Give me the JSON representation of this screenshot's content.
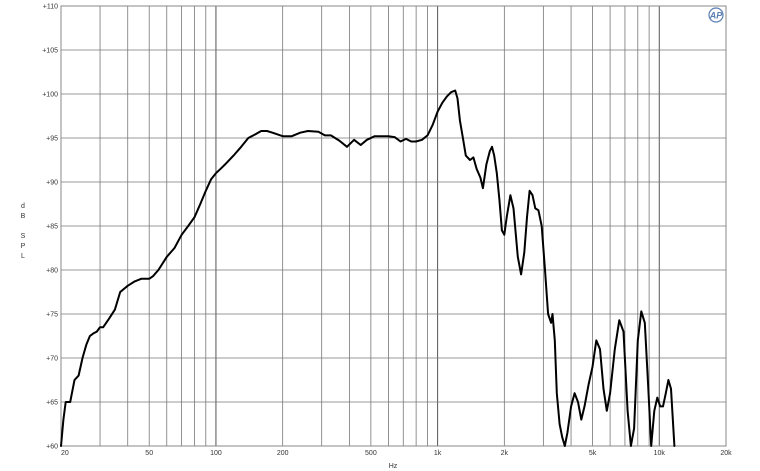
{
  "chart_data": {
    "type": "line",
    "xscale": "log",
    "xlim": [
      20,
      20000
    ],
    "ylim": [
      60,
      110
    ],
    "xlabel": "Hz",
    "ylabel": [
      "d",
      "B",
      "",
      "S",
      "P",
      "L"
    ],
    "x_ticks": [
      {
        "v": 20,
        "label": "20"
      },
      {
        "v": 50,
        "label": "50"
      },
      {
        "v": 100,
        "label": "100"
      },
      {
        "v": 200,
        "label": "200"
      },
      {
        "v": 500,
        "label": "500"
      },
      {
        "v": 1000,
        "label": "1k"
      },
      {
        "v": 2000,
        "label": "2k"
      },
      {
        "v": 5000,
        "label": "5k"
      },
      {
        "v": 10000,
        "label": "10k"
      },
      {
        "v": 20000,
        "label": "20k"
      }
    ],
    "y_ticks": [
      {
        "v": 60,
        "label": "+60"
      },
      {
        "v": 65,
        "label": "+65"
      },
      {
        "v": 70,
        "label": "+70"
      },
      {
        "v": 75,
        "label": "+75"
      },
      {
        "v": 80,
        "label": "+80"
      },
      {
        "v": 85,
        "label": "+85"
      },
      {
        "v": 90,
        "label": "+90"
      },
      {
        "v": 95,
        "label": "+95"
      },
      {
        "v": 100,
        "label": "+100"
      },
      {
        "v": 105,
        "label": "+105"
      },
      {
        "v": 110,
        "label": "+110"
      }
    ],
    "grid": true,
    "logo_text": "AP",
    "series": [
      {
        "color": "#000000",
        "points": [
          [
            20,
            60
          ],
          [
            20.5,
            63
          ],
          [
            21,
            65
          ],
          [
            22,
            65
          ],
          [
            23,
            67.5
          ],
          [
            24,
            68
          ],
          [
            25,
            70
          ],
          [
            26,
            71.5
          ],
          [
            27,
            72.5
          ],
          [
            28,
            72.8
          ],
          [
            29,
            73
          ],
          [
            30,
            73.5
          ],
          [
            31,
            73.5
          ],
          [
            33,
            74.5
          ],
          [
            35,
            75.5
          ],
          [
            37,
            77.5
          ],
          [
            40,
            78.2
          ],
          [
            43,
            78.7
          ],
          [
            46,
            79
          ],
          [
            50,
            79
          ],
          [
            52,
            79.3
          ],
          [
            55,
            80
          ],
          [
            60,
            81.5
          ],
          [
            65,
            82.5
          ],
          [
            70,
            84
          ],
          [
            75,
            85
          ],
          [
            80,
            86
          ],
          [
            85,
            87.5
          ],
          [
            90,
            89
          ],
          [
            95,
            90.3
          ],
          [
            100,
            91
          ],
          [
            105,
            91.5
          ],
          [
            110,
            92
          ],
          [
            120,
            93
          ],
          [
            130,
            94
          ],
          [
            140,
            95
          ],
          [
            150,
            95.4
          ],
          [
            160,
            95.8
          ],
          [
            170,
            95.8
          ],
          [
            180,
            95.6
          ],
          [
            200,
            95.2
          ],
          [
            220,
            95.2
          ],
          [
            240,
            95.6
          ],
          [
            260,
            95.8
          ],
          [
            290,
            95.7
          ],
          [
            310,
            95.3
          ],
          [
            330,
            95.3
          ],
          [
            360,
            94.7
          ],
          [
            390,
            94
          ],
          [
            420,
            94.8
          ],
          [
            450,
            94.2
          ],
          [
            480,
            94.8
          ],
          [
            520,
            95.2
          ],
          [
            560,
            95.2
          ],
          [
            600,
            95.2
          ],
          [
            640,
            95.1
          ],
          [
            680,
            94.6
          ],
          [
            720,
            94.9
          ],
          [
            760,
            94.6
          ],
          [
            800,
            94.6
          ],
          [
            850,
            94.8
          ],
          [
            900,
            95.3
          ],
          [
            950,
            96.5
          ],
          [
            1000,
            98
          ],
          [
            1050,
            99
          ],
          [
            1100,
            99.7
          ],
          [
            1150,
            100.2
          ],
          [
            1200,
            100.4
          ],
          [
            1230,
            99.5
          ],
          [
            1260,
            97
          ],
          [
            1300,
            95
          ],
          [
            1340,
            93
          ],
          [
            1400,
            92.5
          ],
          [
            1450,
            92.8
          ],
          [
            1500,
            91.5
          ],
          [
            1560,
            90.5
          ],
          [
            1600,
            89.3
          ],
          [
            1660,
            92
          ],
          [
            1720,
            93.5
          ],
          [
            1760,
            94
          ],
          [
            1800,
            93
          ],
          [
            1850,
            91
          ],
          [
            1900,
            88
          ],
          [
            1950,
            84.5
          ],
          [
            2000,
            84
          ],
          [
            2050,
            86
          ],
          [
            2130,
            88.5
          ],
          [
            2200,
            87
          ],
          [
            2300,
            81.5
          ],
          [
            2380,
            79.5
          ],
          [
            2460,
            82
          ],
          [
            2530,
            86
          ],
          [
            2600,
            89
          ],
          [
            2680,
            88.5
          ],
          [
            2760,
            87
          ],
          [
            2850,
            86.8
          ],
          [
            2950,
            85
          ],
          [
            3050,
            80
          ],
          [
            3150,
            75
          ],
          [
            3250,
            74
          ],
          [
            3300,
            75
          ],
          [
            3380,
            72
          ],
          [
            3450,
            66
          ],
          [
            3550,
            62.5
          ],
          [
            3650,
            61
          ],
          [
            3750,
            60
          ],
          [
            3850,
            61.5
          ],
          [
            4000,
            64.5
          ],
          [
            4150,
            66
          ],
          [
            4300,
            65
          ],
          [
            4450,
            63
          ],
          [
            4600,
            64.5
          ],
          [
            4800,
            67
          ],
          [
            5000,
            69
          ],
          [
            5200,
            72
          ],
          [
            5400,
            71
          ],
          [
            5600,
            66.5
          ],
          [
            5800,
            64
          ],
          [
            6000,
            66
          ],
          [
            6300,
            71
          ],
          [
            6600,
            74.3
          ],
          [
            6900,
            73
          ],
          [
            7200,
            64
          ],
          [
            7450,
            60
          ],
          [
            7700,
            62
          ],
          [
            8000,
            72
          ],
          [
            8300,
            75.3
          ],
          [
            8600,
            74
          ],
          [
            8900,
            67
          ],
          [
            9200,
            60
          ],
          [
            9500,
            64
          ],
          [
            9800,
            65.5
          ],
          [
            10100,
            64.5
          ],
          [
            10400,
            64.5
          ],
          [
            10700,
            66
          ],
          [
            11000,
            67.5
          ],
          [
            11300,
            66.5
          ],
          [
            11700,
            60
          ]
        ]
      }
    ]
  }
}
